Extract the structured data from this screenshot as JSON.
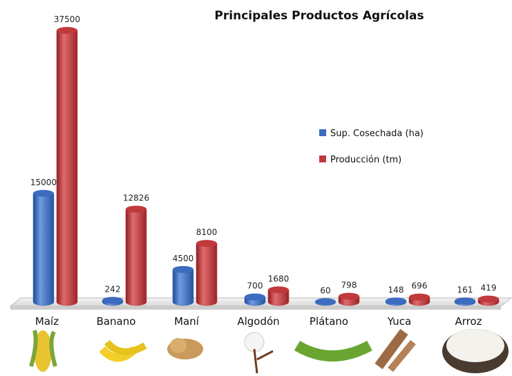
{
  "chart_data": {
    "type": "bar",
    "title": "Principales Productos Agrícolas",
    "categories": [
      "Maíz",
      "Banano",
      "Maní",
      "Algodón",
      "Plátano",
      "Yuca",
      "Arroz"
    ],
    "series": [
      {
        "name": "Sup. Cosechada (ha)",
        "color": "#3b6cc0",
        "values": [
          15000,
          242,
          4500,
          700,
          60,
          148,
          161
        ]
      },
      {
        "name": "Producción (tm)",
        "color": "#c0393b",
        "values": [
          37500,
          12826,
          8100,
          1680,
          798,
          696,
          419
        ]
      }
    ],
    "legend": "right"
  }
}
